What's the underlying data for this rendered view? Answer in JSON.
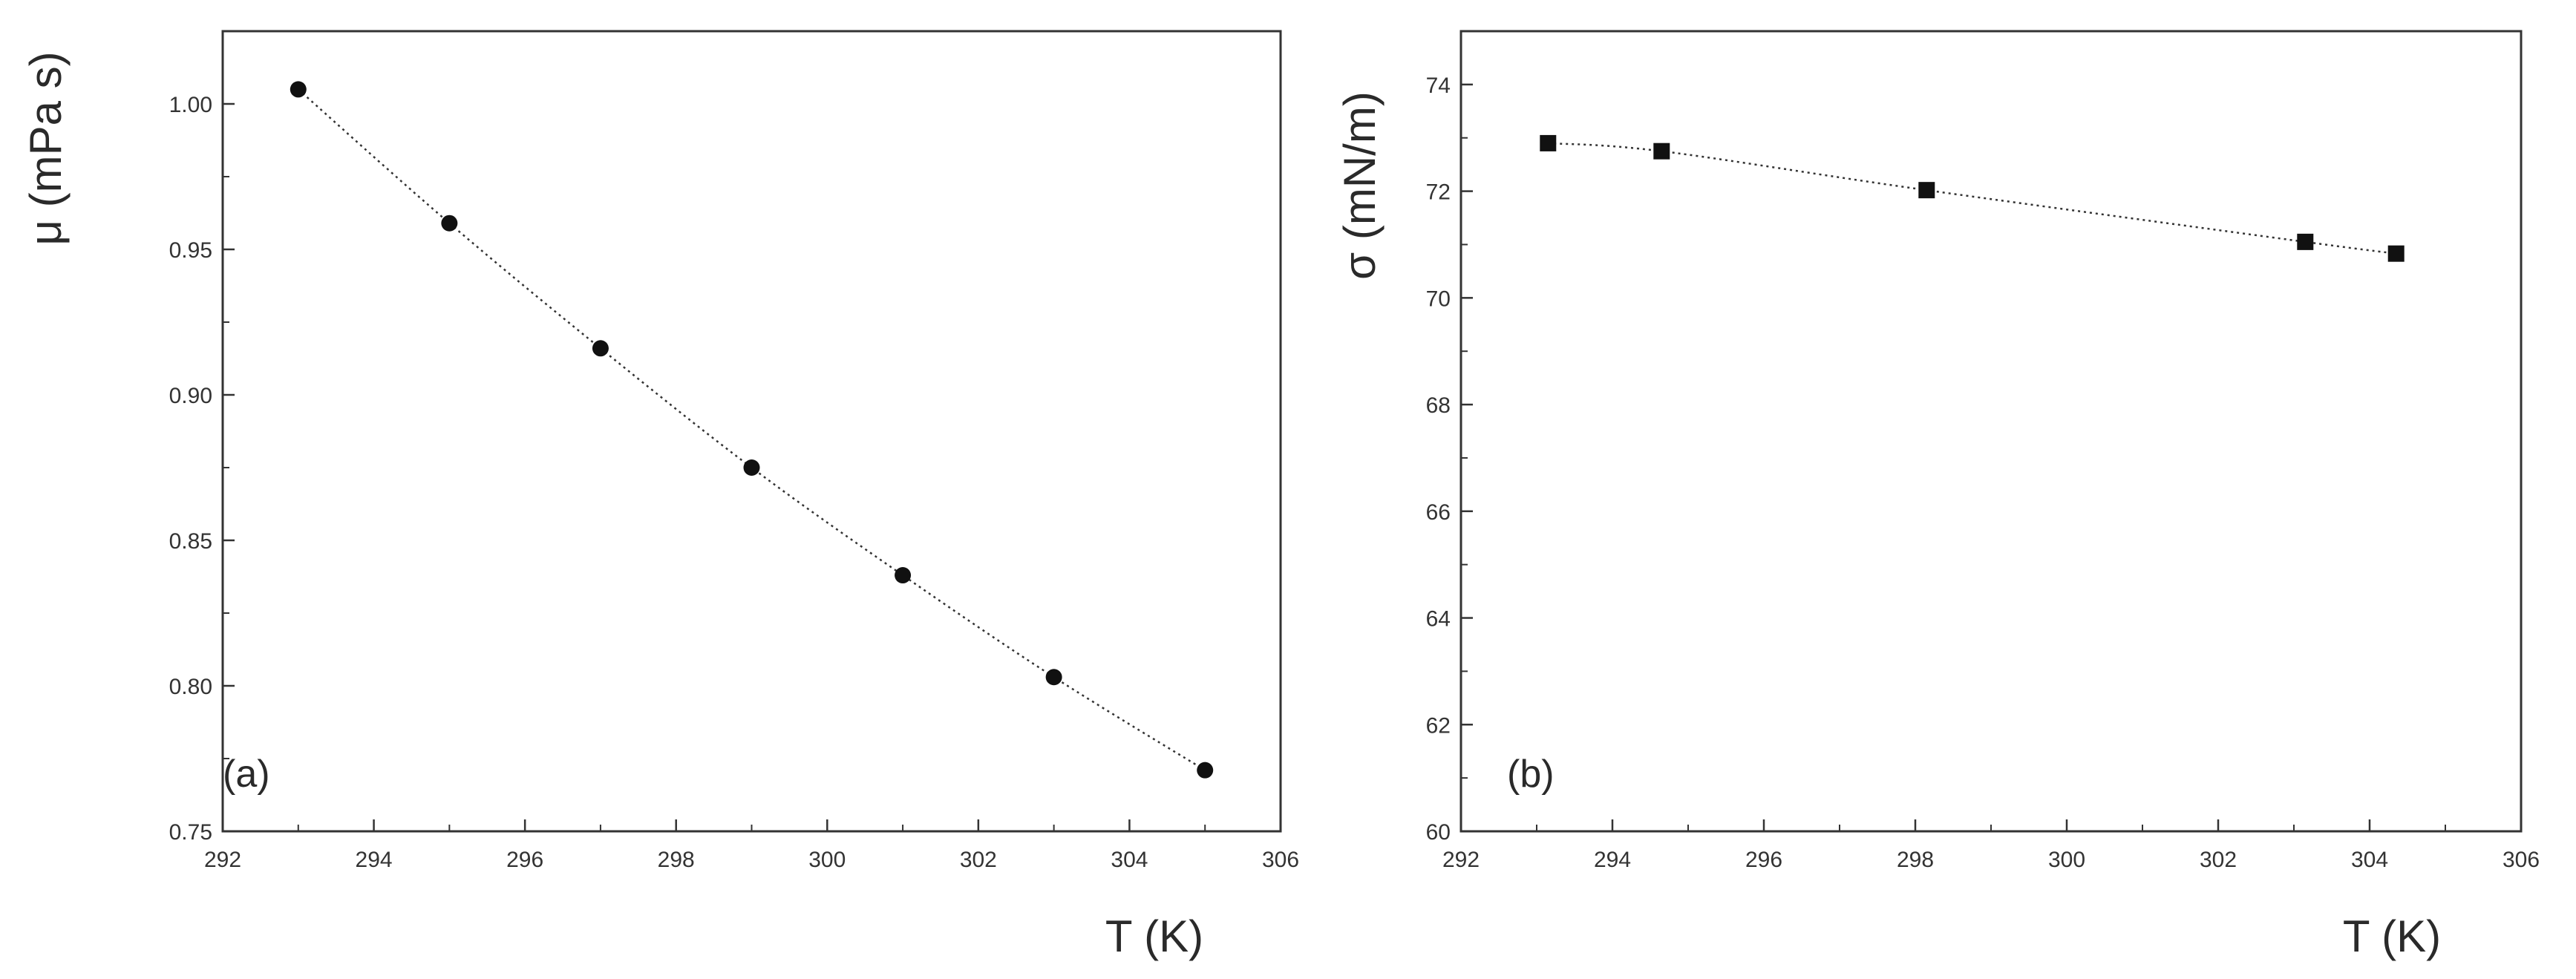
{
  "colors": {
    "axis": "#333333",
    "marker": "#111111",
    "line": "#333333",
    "background": "#ffffff"
  },
  "chart_data": [
    {
      "type": "scatter",
      "panel_label": "(a)",
      "marker": "circle",
      "line_style": "dotted",
      "xlabel": "T (K)",
      "ylabel": "μ  (mPa s)",
      "xlim": [
        292,
        306
      ],
      "ylim": [
        0.75,
        1.025
      ],
      "x_ticks": [
        292,
        294,
        296,
        298,
        300,
        302,
        304,
        306
      ],
      "y_ticks": [
        0.75,
        0.8,
        0.85,
        0.9,
        0.95,
        1.0
      ],
      "x_tick_labels": [
        "292",
        "294",
        "296",
        "298",
        "300",
        "302",
        "304",
        "306"
      ],
      "y_tick_labels": [
        "0.75",
        "0.80",
        "0.85",
        "0.90",
        "0.95",
        "1.00"
      ],
      "x": [
        293,
        295,
        297,
        299,
        301,
        303,
        305
      ],
      "y": [
        1.005,
        0.959,
        0.916,
        0.875,
        0.838,
        0.803,
        0.771
      ]
    },
    {
      "type": "scatter",
      "panel_label": "(b)",
      "marker": "square",
      "line_style": "dotted",
      "xlabel": "T (K)",
      "ylabel": "σ  (mN/m)",
      "xlim": [
        292,
        306
      ],
      "ylim": [
        60,
        75
      ],
      "x_ticks": [
        292,
        294,
        296,
        298,
        300,
        302,
        304,
        306
      ],
      "y_ticks": [
        60,
        62,
        64,
        66,
        68,
        70,
        72,
        74
      ],
      "x_tick_labels": [
        "292",
        "294",
        "296",
        "298",
        "300",
        "302",
        "304",
        "306"
      ],
      "y_tick_labels": [
        "60",
        "62",
        "64",
        "66",
        "68",
        "70",
        "72",
        "74"
      ],
      "x": [
        293.15,
        294.65,
        298.15,
        303.15,
        304.35
      ],
      "y": [
        72.9,
        72.75,
        72.02,
        71.05,
        70.83
      ]
    }
  ]
}
